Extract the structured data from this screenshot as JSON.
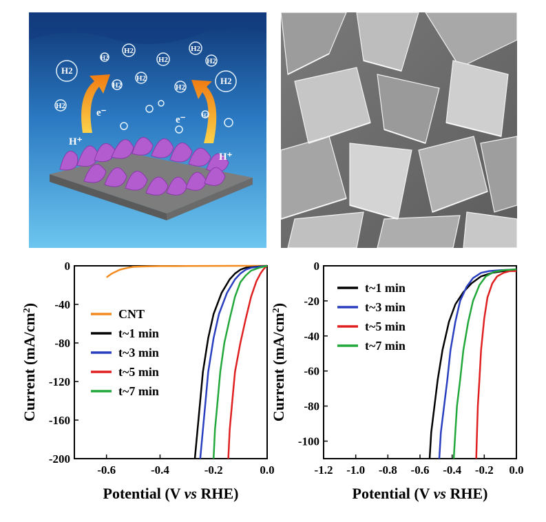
{
  "illustration": {
    "bubble_labels": [
      "H2",
      "H2",
      "H2",
      "H2",
      "H2",
      "H2",
      "H2",
      "H2",
      "H2",
      "H2",
      "H2",
      "H2"
    ],
    "electron_label": "e⁻",
    "proton_label": "H⁺",
    "colors": {
      "water_top": "#1d4f94",
      "water_bottom": "#5ab4e4",
      "arrow": "#f59a19",
      "sheets": "#b45fd1",
      "substrate": "#8a8a8a"
    }
  },
  "sem_image": {
    "description_icon": "sem-micrograph",
    "colors": {
      "base": "#6d6d6d",
      "light": "#d8d8d8"
    }
  },
  "chart_data": [
    {
      "type": "line",
      "xlabel": "Potential (V vs RHE)",
      "xlabel_parts": [
        "Potential (V ",
        "vs",
        " RHE)"
      ],
      "ylabel": "Current (mA/cm²)",
      "ylabel_parts": [
        "Current (mA/cm",
        "2",
        ")"
      ],
      "xlim": [
        -0.72,
        0.0
      ],
      "ylim": [
        -200,
        0
      ],
      "xticks": [
        -0.6,
        -0.4,
        -0.2,
        0.0
      ],
      "xtick_labels": [
        "-0.6",
        "-0.4",
        "-0.2",
        "0.0"
      ],
      "yticks": [
        0,
        -40,
        -80,
        -120,
        -160,
        -200
      ],
      "ytick_labels": [
        "0",
        "-40",
        "-80",
        "-120",
        "-160",
        "-200"
      ],
      "legend_position": "middle-left",
      "series": [
        {
          "name": "CNT",
          "color": "#f28a1e",
          "x": [
            -0.6,
            -0.58,
            -0.55,
            -0.52,
            -0.5,
            -0.45,
            -0.4,
            -0.3,
            -0.2,
            -0.1,
            0.0
          ],
          "y": [
            -12,
            -8,
            -4,
            -2,
            -1,
            -0.5,
            -0.3,
            -0.2,
            -0.1,
            0,
            0
          ]
        },
        {
          "name": "t~1 min",
          "color": "#000000",
          "x": [
            -0.27,
            -0.26,
            -0.25,
            -0.24,
            -0.22,
            -0.2,
            -0.17,
            -0.14,
            -0.12,
            -0.1,
            -0.08,
            0.0
          ],
          "y": [
            -200,
            -170,
            -140,
            -110,
            -75,
            -50,
            -28,
            -14,
            -8,
            -4,
            -2,
            0
          ]
        },
        {
          "name": "t~3 min",
          "color": "#2a3fbf",
          "x": [
            -0.25,
            -0.24,
            -0.23,
            -0.22,
            -0.2,
            -0.18,
            -0.15,
            -0.12,
            -0.1,
            -0.08,
            -0.06,
            0.0
          ],
          "y": [
            -200,
            -170,
            -140,
            -110,
            -75,
            -50,
            -28,
            -14,
            -8,
            -4,
            -2,
            0
          ]
        },
        {
          "name": "t~5 min",
          "color": "#e02020",
          "x": [
            -0.145,
            -0.14,
            -0.13,
            -0.12,
            -0.1,
            -0.08,
            -0.06,
            -0.04,
            -0.025,
            -0.015,
            -0.005,
            0.0
          ],
          "y": [
            -200,
            -170,
            -140,
            -110,
            -80,
            -55,
            -32,
            -16,
            -8,
            -4,
            -1,
            0
          ]
        },
        {
          "name": "t~7 min",
          "color": "#22a83a",
          "x": [
            -0.2,
            -0.195,
            -0.185,
            -0.175,
            -0.16,
            -0.14,
            -0.12,
            -0.1,
            -0.08,
            -0.06,
            -0.03,
            0.0
          ],
          "y": [
            -200,
            -170,
            -140,
            -110,
            -80,
            -55,
            -32,
            -17,
            -10,
            -5,
            -2,
            0
          ]
        }
      ]
    },
    {
      "type": "line",
      "xlabel": "Potential (V vs RHE)",
      "xlabel_parts": [
        "Potential (V ",
        "vs",
        " RHE)"
      ],
      "ylabel": "Current (mA/cm²)",
      "ylabel_parts": [
        "Current (mA/cm",
        "2",
        ")"
      ],
      "xlim": [
        -1.2,
        0.0
      ],
      "ylim": [
        -110,
        0
      ],
      "xticks": [
        -1.2,
        -1.0,
        -0.8,
        -0.6,
        -0.4,
        -0.2,
        0.0
      ],
      "xtick_labels": [
        "-1.2",
        "-1.0",
        "-0.8",
        "-0.6",
        "-0.4",
        "-0.2",
        "0.0"
      ],
      "yticks": [
        0,
        -20,
        -40,
        -60,
        -80,
        -100
      ],
      "ytick_labels": [
        "0",
        "-20",
        "-40",
        "-60",
        "-80",
        "-100"
      ],
      "legend_position": "top-left",
      "series": [
        {
          "name": "t~1 min",
          "color": "#000000",
          "x": [
            -0.54,
            -0.53,
            -0.51,
            -0.49,
            -0.46,
            -0.42,
            -0.38,
            -0.33,
            -0.28,
            -0.22,
            -0.15,
            -0.08,
            0.0
          ],
          "y": [
            -110,
            -95,
            -80,
            -65,
            -48,
            -32,
            -22,
            -15,
            -10,
            -6,
            -4,
            -3,
            -2
          ]
        },
        {
          "name": "t~3 min",
          "color": "#2a3fbf",
          "x": [
            -0.48,
            -0.47,
            -0.45,
            -0.43,
            -0.41,
            -0.38,
            -0.35,
            -0.31,
            -0.27,
            -0.22,
            -0.17,
            -0.1,
            0.0
          ],
          "y": [
            -110,
            -95,
            -80,
            -65,
            -48,
            -32,
            -20,
            -12,
            -7,
            -4,
            -3,
            -2.5,
            -2
          ]
        },
        {
          "name": "t~5 min",
          "color": "#e02020",
          "x": [
            -0.25,
            -0.245,
            -0.24,
            -0.23,
            -0.22,
            -0.2,
            -0.18,
            -0.15,
            -0.12,
            -0.08,
            -0.04,
            0.0
          ],
          "y": [
            -110,
            -95,
            -80,
            -65,
            -48,
            -30,
            -18,
            -10,
            -6,
            -4,
            -3,
            -3
          ]
        },
        {
          "name": "t~7 min",
          "color": "#22a83a",
          "x": [
            -0.39,
            -0.38,
            -0.37,
            -0.35,
            -0.33,
            -0.3,
            -0.27,
            -0.23,
            -0.19,
            -0.14,
            -0.08,
            0.0
          ],
          "y": [
            -110,
            -95,
            -80,
            -65,
            -48,
            -32,
            -20,
            -11,
            -6,
            -3.5,
            -2.5,
            -2
          ]
        }
      ]
    }
  ]
}
